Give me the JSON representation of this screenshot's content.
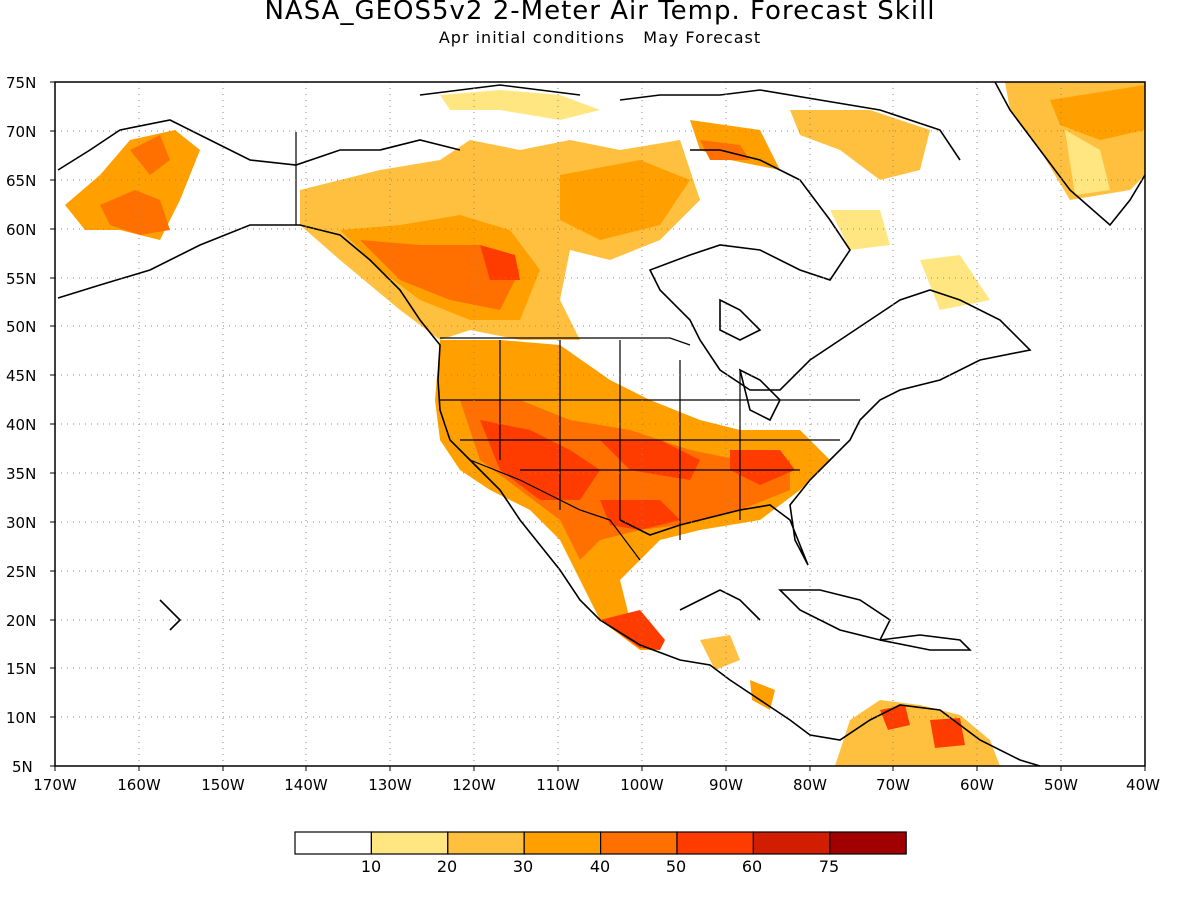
{
  "title": "NASA_GEOS5v2 2-Meter Air Temp. Forecast Skill",
  "subtitle": "Apr initial conditions   May Forecast",
  "map": {
    "lon_range": [
      -170,
      -40
    ],
    "lat_range": [
      5,
      75
    ],
    "lon_ticks": [
      "170W",
      "160W",
      "150W",
      "140W",
      "130W",
      "120W",
      "110W",
      "100W",
      "90W",
      "80W",
      "70W",
      "60W",
      "50W",
      "40W"
    ],
    "lat_ticks": [
      "5N",
      "10N",
      "15N",
      "20N",
      "25N",
      "30N",
      "35N",
      "40N",
      "45N",
      "50N",
      "55N",
      "60N",
      "65N",
      "70N",
      "75N"
    ],
    "gridlines": "dotted"
  },
  "colorbar": {
    "colors": [
      "#ffffff",
      "#ffe680",
      "#ffc040",
      "#ffa000",
      "#ff7000",
      "#ff3c00",
      "#d21e00",
      "#a00000"
    ],
    "labels": [
      "10",
      "20",
      "30",
      "40",
      "50",
      "60",
      "75"
    ]
  },
  "skill_regions": [
    {
      "name": "southwest-us",
      "level": 5
    },
    {
      "name": "southern-plains",
      "level": 5
    },
    {
      "name": "southeast-us",
      "level": 5
    },
    {
      "name": "western-canada",
      "level": 4
    },
    {
      "name": "alaska",
      "level": 5
    },
    {
      "name": "mexico",
      "level": 4
    },
    {
      "name": "greenland",
      "level": 3
    },
    {
      "name": "northern-south-america",
      "level": 5
    }
  ]
}
